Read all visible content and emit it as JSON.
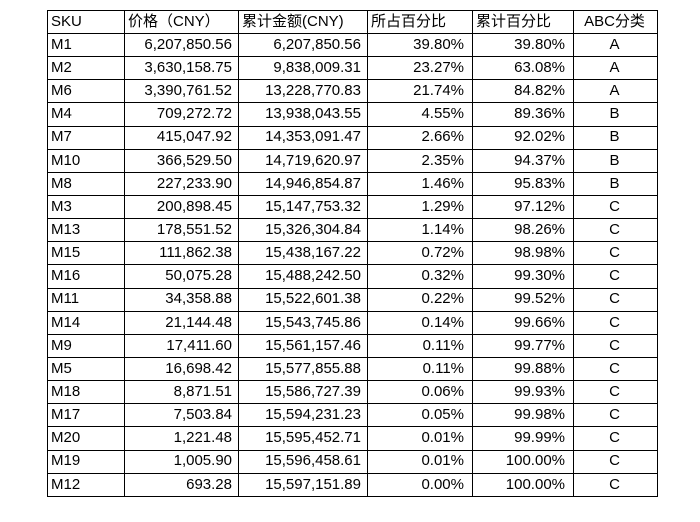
{
  "table": {
    "columns": [
      {
        "label": "SKU"
      },
      {
        "label": "价格（CNY）"
      },
      {
        "label": "累计金额(CNY)"
      },
      {
        "label": "所占百分比"
      },
      {
        "label": "累计百分比"
      },
      {
        "label": "ABC分类"
      }
    ],
    "rows": [
      [
        "M1",
        "6,207,850.56",
        "6,207,850.56",
        "39.80%",
        "39.80%",
        "A"
      ],
      [
        "M2",
        "3,630,158.75",
        "9,838,009.31",
        "23.27%",
        "63.08%",
        "A"
      ],
      [
        "M6",
        "3,390,761.52",
        "13,228,770.83",
        "21.74%",
        "84.82%",
        "A"
      ],
      [
        "M4",
        "709,272.72",
        "13,938,043.55",
        "4.55%",
        "89.36%",
        "B"
      ],
      [
        "M7",
        "415,047.92",
        "14,353,091.47",
        "2.66%",
        "92.02%",
        "B"
      ],
      [
        "M10",
        "366,529.50",
        "14,719,620.97",
        "2.35%",
        "94.37%",
        "B"
      ],
      [
        "M8",
        "227,233.90",
        "14,946,854.87",
        "1.46%",
        "95.83%",
        "B"
      ],
      [
        "M3",
        "200,898.45",
        "15,147,753.32",
        "1.29%",
        "97.12%",
        "C"
      ],
      [
        "M13",
        "178,551.52",
        "15,326,304.84",
        "1.14%",
        "98.26%",
        "C"
      ],
      [
        "M15",
        "111,862.38",
        "15,438,167.22",
        "0.72%",
        "98.98%",
        "C"
      ],
      [
        "M16",
        "50,075.28",
        "15,488,242.50",
        "0.32%",
        "99.30%",
        "C"
      ],
      [
        "M11",
        "34,358.88",
        "15,522,601.38",
        "0.22%",
        "99.52%",
        "C"
      ],
      [
        "M14",
        "21,144.48",
        "15,543,745.86",
        "0.14%",
        "99.66%",
        "C"
      ],
      [
        "M9",
        "17,411.60",
        "15,561,157.46",
        "0.11%",
        "99.77%",
        "C"
      ],
      [
        "M5",
        "16,698.42",
        "15,577,855.88",
        "0.11%",
        "99.88%",
        "C"
      ],
      [
        "M18",
        "8,871.51",
        "15,586,727.39",
        "0.06%",
        "99.93%",
        "C"
      ],
      [
        "M17",
        "7,503.84",
        "15,594,231.23",
        "0.05%",
        "99.98%",
        "C"
      ],
      [
        "M20",
        "1,221.48",
        "15,595,452.71",
        "0.01%",
        "99.99%",
        "C"
      ],
      [
        "M19",
        "1,005.90",
        "15,596,458.61",
        "0.01%",
        "100.00%",
        "C"
      ],
      [
        "M12",
        "693.28",
        "15,597,151.89",
        "0.00%",
        "100.00%",
        "C"
      ]
    ]
  },
  "chart_data": {
    "type": "table",
    "columns": [
      "SKU",
      "价格（CNY）",
      "累计金额(CNY)",
      "所占百分比",
      "累计百分比",
      "ABC分类"
    ],
    "skus": [
      "M1",
      "M2",
      "M6",
      "M4",
      "M7",
      "M10",
      "M8",
      "M3",
      "M13",
      "M15",
      "M16",
      "M11",
      "M14",
      "M9",
      "M5",
      "M18",
      "M17",
      "M20",
      "M19",
      "M12"
    ],
    "price_cny": [
      6207850.56,
      3630158.75,
      3390761.52,
      709272.72,
      415047.92,
      366529.5,
      227233.9,
      200898.45,
      178551.52,
      111862.38,
      50075.28,
      34358.88,
      21144.48,
      17411.6,
      16698.42,
      8871.51,
      7503.84,
      1221.48,
      1005.9,
      693.28
    ],
    "cumulative_amount_cny": [
      6207850.56,
      9838009.31,
      13228770.83,
      13938043.55,
      14353091.47,
      14719620.97,
      14946854.87,
      15147753.32,
      15326304.84,
      15438167.22,
      15488242.5,
      15522601.38,
      15543745.86,
      15561157.46,
      15577855.88,
      15586727.39,
      15594231.23,
      15595452.71,
      15596458.61,
      15597151.89
    ],
    "percent_share": [
      39.8,
      23.27,
      21.74,
      4.55,
      2.66,
      2.35,
      1.46,
      1.29,
      1.14,
      0.72,
      0.32,
      0.22,
      0.14,
      0.11,
      0.11,
      0.06,
      0.05,
      0.01,
      0.01,
      0.0
    ],
    "cumulative_percent": [
      39.8,
      63.08,
      84.82,
      89.36,
      92.02,
      94.37,
      95.83,
      97.12,
      98.26,
      98.98,
      99.3,
      99.52,
      99.66,
      99.77,
      99.88,
      99.93,
      99.98,
      99.99,
      100.0,
      100.0
    ],
    "abc_class": [
      "A",
      "A",
      "A",
      "B",
      "B",
      "B",
      "B",
      "C",
      "C",
      "C",
      "C",
      "C",
      "C",
      "C",
      "C",
      "C",
      "C",
      "C",
      "C",
      "C"
    ]
  },
  "colors": {
    "background": "#ffffff",
    "border": "#000000",
    "text": "#000000"
  }
}
